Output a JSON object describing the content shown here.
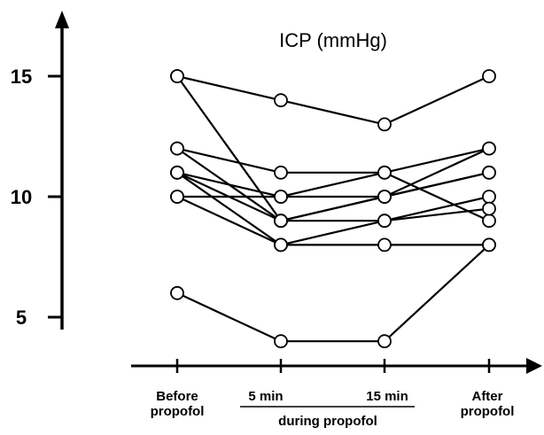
{
  "chart_data": {
    "type": "line",
    "title": "ICP (mmHg)",
    "xlabel": "",
    "ylabel": "",
    "ylim": [
      3,
      17
    ],
    "yticks": [
      5,
      10,
      15
    ],
    "grid": false,
    "legend": "none",
    "categories": [
      [
        "Before",
        "propofol"
      ],
      [
        "5 min"
      ],
      [
        "15 min"
      ],
      [
        "After",
        "propofol"
      ]
    ],
    "group_label": "during propofol",
    "series": [
      {
        "values": [
          15,
          14,
          13,
          15
        ]
      },
      {
        "values": [
          15,
          9,
          9,
          10
        ]
      },
      {
        "values": [
          12,
          11,
          11,
          12
        ]
      },
      {
        "values": [
          12,
          9,
          10,
          11
        ]
      },
      {
        "values": [
          11,
          10,
          11,
          9
        ]
      },
      {
        "values": [
          11,
          9,
          10,
          12
        ]
      },
      {
        "values": [
          11,
          8,
          9,
          9.5
        ]
      },
      {
        "values": [
          10,
          10,
          10,
          11
        ]
      },
      {
        "values": [
          10,
          8,
          8,
          8
        ]
      },
      {
        "values": [
          6,
          4,
          4,
          8
        ]
      }
    ]
  }
}
